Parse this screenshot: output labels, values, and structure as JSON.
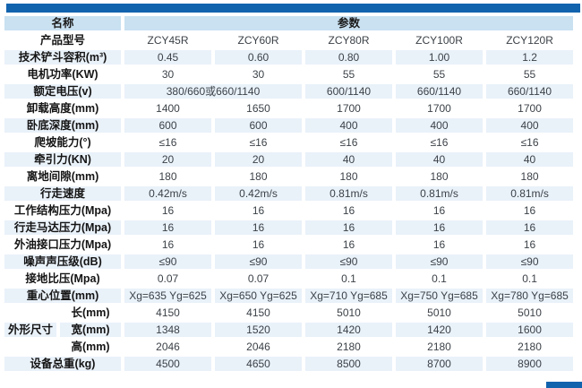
{
  "page": {
    "accent_color": "#1263ae",
    "header_bg": "#c9e1f1",
    "stripe_bg": "#e9f1f9"
  },
  "table": {
    "header": {
      "name": "名称",
      "params": "参数"
    },
    "rows": [
      {
        "label": "产品型号",
        "cells": [
          "ZCY45R",
          "ZCY60R",
          "ZCY80R",
          "ZCY100R",
          "ZCY120R"
        ]
      },
      {
        "label": "技术铲斗容积(m³)",
        "cells": [
          "0.45",
          "0.60",
          "0.80",
          "1.00",
          "1.2"
        ]
      },
      {
        "label": "电机功率(KW)",
        "cells": [
          "30",
          "30",
          "55",
          "55",
          "55"
        ]
      },
      {
        "label": "额定电压(v)",
        "cells": [
          {
            "text": "380/660或660/1140",
            "span": 2
          },
          "600/1140",
          "660/1140",
          "660/1140"
        ]
      },
      {
        "label": "卸载高度(mm)",
        "cells": [
          "1400",
          "1650",
          "1700",
          "1700",
          "1700"
        ]
      },
      {
        "label": "卧底深度(mm)",
        "cells": [
          "600",
          "600",
          "400",
          "400",
          "400"
        ]
      },
      {
        "label": "爬坡能力(°)",
        "cells": [
          "≤16",
          "≤16",
          "≤16",
          "≤16",
          "≤16"
        ]
      },
      {
        "label": "牵引力(KN)",
        "cells": [
          "20",
          "20",
          "40",
          "40",
          "40"
        ]
      },
      {
        "label": "离地间隙(mm)",
        "cells": [
          "180",
          "180",
          "180",
          "180",
          "180"
        ]
      },
      {
        "label": "行走速度",
        "cells": [
          "0.42m/s",
          "0.42m/s",
          "0.81m/s",
          "0.81m/s",
          "0.81m/s"
        ]
      },
      {
        "label": "工作结构压力(Mpa)",
        "cells": [
          "16",
          "16",
          "16",
          "16",
          "16"
        ]
      },
      {
        "label": "行走马达压力(Mpa)",
        "cells": [
          "16",
          "16",
          "16",
          "16",
          "16"
        ]
      },
      {
        "label": "外油接口压力(Mpa)",
        "cells": [
          "16",
          "16",
          "16",
          "16",
          "16"
        ]
      },
      {
        "label": "噪声声压级(dB)",
        "cells": [
          "≤90",
          "≤90",
          "≤90",
          "≤90",
          "≤90"
        ]
      },
      {
        "label": "接地比压(Mpa)",
        "cells": [
          "0.07",
          "0.07",
          "0.1",
          "0.1",
          "0.1"
        ]
      },
      {
        "label": "重心位置(mm)",
        "cells": [
          "Xg=635 Yg=625",
          "Xg=650 Yg=625",
          "Xg=710 Yg=685",
          "Xg=750 Yg=685",
          "Xg=780 Yg=685"
        ]
      },
      {
        "group": "外形尺寸",
        "label": "长(mm)",
        "cells": [
          "4150",
          "4150",
          "5010",
          "5010",
          "5010"
        ]
      },
      {
        "group_cont": true,
        "label": "宽(mm)",
        "cells": [
          "1348",
          "1520",
          "1420",
          "1420",
          "1600"
        ]
      },
      {
        "group_cont": true,
        "label": "高(mm)",
        "cells": [
          "2046",
          "2046",
          "2180",
          "2180",
          "2180"
        ]
      },
      {
        "label": "设备总重(kg)",
        "cells": [
          "4500",
          "4650",
          "8500",
          "8700",
          "8900"
        ]
      }
    ]
  }
}
